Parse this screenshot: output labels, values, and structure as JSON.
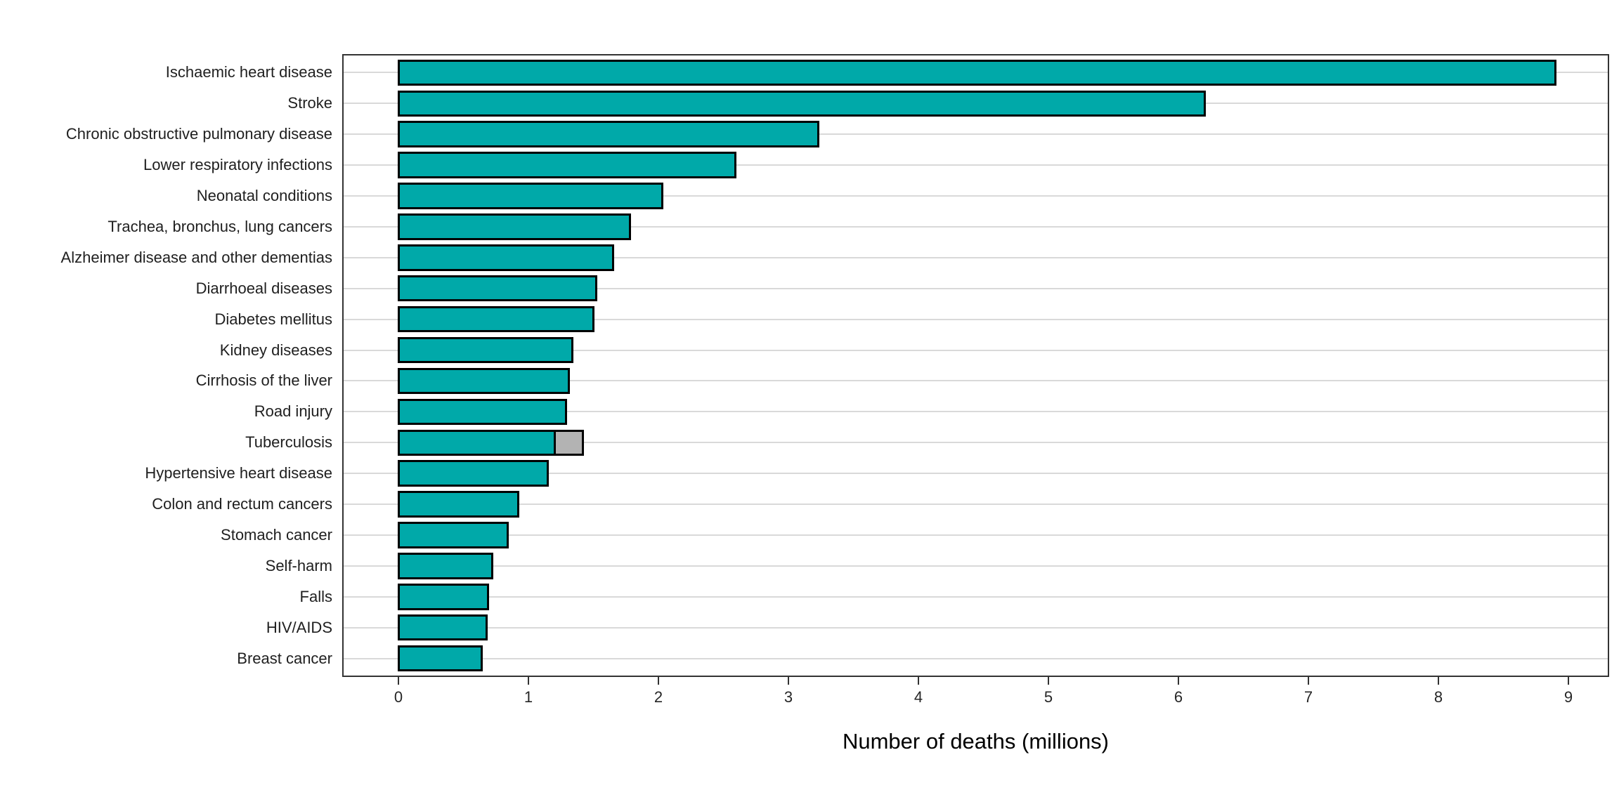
{
  "chart_data": {
    "type": "bar",
    "orientation": "horizontal",
    "title": "",
    "xlabel": "Number of deaths (millions)",
    "ylabel": "",
    "xlim": [
      0,
      9.3
    ],
    "xticks": [
      0,
      1,
      2,
      3,
      4,
      5,
      6,
      7,
      8,
      9
    ],
    "grid": "horizontal category gridlines only, light gray; no vertical gridlines",
    "legend_position": "none",
    "categories": [
      "Ischaemic heart disease",
      "Stroke",
      "Chronic obstructive pulmonary disease",
      "Lower respiratory infections",
      "Neonatal conditions",
      "Trachea, bronchus, lung cancers",
      "Alzheimer disease and other dementias",
      "Diarrhoeal diseases",
      "Diabetes mellitus",
      "Kidney diseases",
      "Cirrhosis of the liver",
      "Road injury",
      "Tuberculosis",
      "Hypertensive heart disease",
      "Colon and rectum cancers",
      "Stomach cancer",
      "Self-harm",
      "Falls",
      "HIV/AIDS",
      "Breast cancer"
    ],
    "series": [
      {
        "name": "deaths-main",
        "color": "#00A9A9",
        "values": [
          8.9,
          6.2,
          3.23,
          2.59,
          2.03,
          1.78,
          1.65,
          1.52,
          1.5,
          1.34,
          1.31,
          1.29,
          1.2,
          1.15,
          0.92,
          0.84,
          0.72,
          0.69,
          0.68,
          0.64
        ]
      },
      {
        "name": "deaths-additional-gray-segment",
        "color": "#B3B3B3",
        "values": [
          0,
          0,
          0,
          0,
          0,
          0,
          0,
          0,
          0,
          0,
          0,
          0,
          0.22,
          0,
          0,
          0,
          0,
          0,
          0,
          0
        ]
      }
    ],
    "bar_outline_color": "#000000",
    "gridline_color": "#D9D9D9",
    "panel_border_color": "#333333",
    "background_color": "#FFFFFF"
  }
}
